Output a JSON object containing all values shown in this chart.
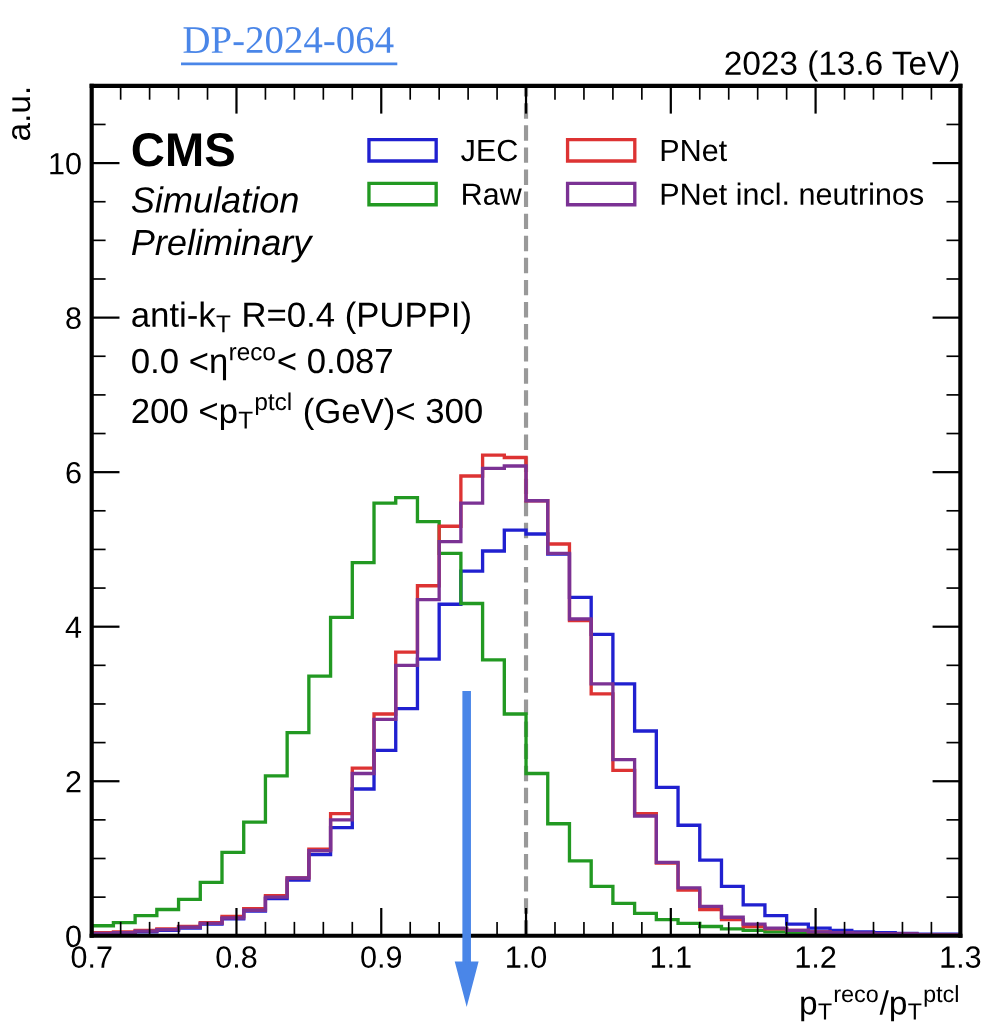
{
  "chart_data": {
    "type": "histogram",
    "title": "2023 (13.6 TeV)",
    "xlabel": "p$_{T}$$^{reco}$/p$_{T}$$^{ptcl}$",
    "ylabel": "a.u.",
    "annotations": [
      "DP-2024-064",
      "CMS",
      "Simulation",
      "Preliminary",
      "anti-k$_{T}$ R=0.4 (PUPPI)",
      "0.0 <η$^{reco}$< 0.087",
      "200 <p$_{T}$$^{ptcl}$ (GeV)< 300"
    ],
    "bins": [
      0.7,
      0.715,
      0.73,
      0.745,
      0.76,
      0.775,
      0.79,
      0.805,
      0.82,
      0.835,
      0.85,
      0.865,
      0.88,
      0.895,
      0.91,
      0.925,
      0.94,
      0.955,
      0.97,
      0.985,
      1.0,
      1.015,
      1.03,
      1.045,
      1.06,
      1.075,
      1.09,
      1.105,
      1.12,
      1.135,
      1.15,
      1.165,
      1.18,
      1.195,
      1.21,
      1.225,
      1.24,
      1.255,
      1.27,
      1.285,
      1.3
    ],
    "series": [
      {
        "name": "JEC",
        "color": "#2020d0",
        "values": [
          0.03,
          0.04,
          0.05,
          0.07,
          0.1,
          0.15,
          0.22,
          0.32,
          0.48,
          0.72,
          1.05,
          1.4,
          1.9,
          2.4,
          2.94,
          3.58,
          4.29,
          4.72,
          4.98,
          5.25,
          5.2,
          4.94,
          4.38,
          3.9,
          3.26,
          2.65,
          1.92,
          1.43,
          0.98,
          0.64,
          0.4,
          0.26,
          0.15,
          0.1,
          0.07,
          0.05,
          0.04,
          0.03,
          0.02,
          0.02
        ]
      },
      {
        "name": "Raw",
        "color": "#229922",
        "values": [
          0.13,
          0.17,
          0.26,
          0.34,
          0.47,
          0.69,
          1.08,
          1.47,
          2.07,
          2.63,
          3.36,
          4.12,
          4.83,
          5.6,
          5.67,
          5.36,
          4.95,
          4.3,
          3.57,
          2.87,
          2.1,
          1.45,
          0.97,
          0.64,
          0.42,
          0.29,
          0.21,
          0.16,
          0.12,
          0.09,
          0.07,
          0.05,
          0.04,
          0.03,
          0.02,
          0.02,
          0.01,
          0.01,
          0.01,
          0.01
        ]
      },
      {
        "name": "PNet",
        "color": "#dd3333",
        "values": [
          0.04,
          0.05,
          0.07,
          0.09,
          0.12,
          0.17,
          0.25,
          0.35,
          0.52,
          0.75,
          1.12,
          1.58,
          2.17,
          2.87,
          3.67,
          4.53,
          5.3,
          5.95,
          6.22,
          6.19,
          5.63,
          5.07,
          4.08,
          3.13,
          2.14,
          1.58,
          0.94,
          0.59,
          0.34,
          0.21,
          0.12,
          0.09,
          0.07,
          0.05,
          0.04,
          0.03,
          0.02,
          0.02,
          0.01,
          0.01
        ]
      },
      {
        "name": "PNet incl. neutrinos",
        "color": "#7b3294",
        "values": [
          0.03,
          0.04,
          0.06,
          0.08,
          0.11,
          0.16,
          0.23,
          0.33,
          0.5,
          0.75,
          1.1,
          1.5,
          2.1,
          2.8,
          3.5,
          4.35,
          5.1,
          5.6,
          6.05,
          6.08,
          5.63,
          4.95,
          4.1,
          3.26,
          2.28,
          1.55,
          0.95,
          0.62,
          0.38,
          0.24,
          0.15,
          0.1,
          0.07,
          0.05,
          0.04,
          0.03,
          0.02,
          0.02,
          0.01,
          0.01
        ]
      }
    ],
    "xlim": [
      0.7,
      1.3
    ],
    "xticks": [
      0.7,
      0.8,
      0.9,
      {
        "value": 1.0,
        "label": "1.0"
      },
      1.1,
      1.2,
      1.3
    ],
    "ylim": [
      0,
      11
    ],
    "yticks": [
      0,
      2,
      4,
      6,
      8,
      10
    ],
    "ref_lines": [
      {
        "axis": "x",
        "value": 1.0,
        "color": "#999999",
        "line_style": "dashed"
      }
    ],
    "legend": "top right",
    "grid": false
  }
}
